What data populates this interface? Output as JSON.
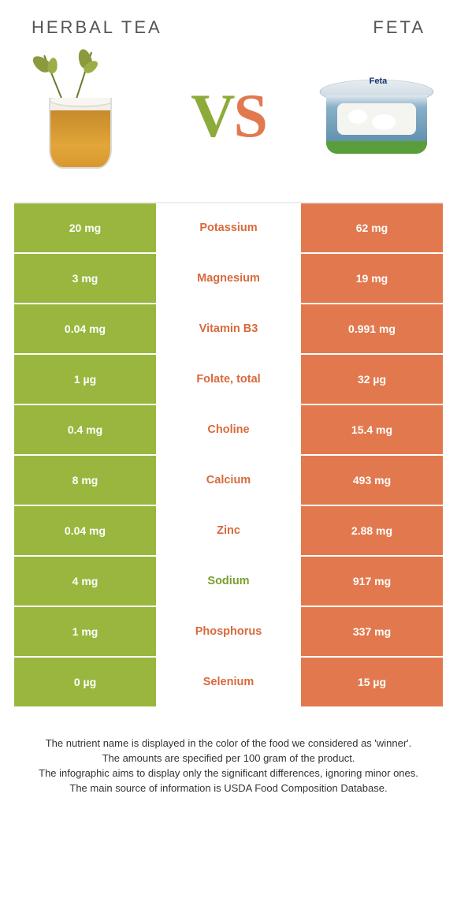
{
  "colors": {
    "green": "#99b73e",
    "orange": "#e2794e",
    "nutrient_orange_text": "#d86a3c",
    "nutrient_green_text": "#7a9e2e"
  },
  "header": {
    "left": "HERBAL TEA",
    "right": "FETA"
  },
  "vs": {
    "v": "V",
    "s": "S"
  },
  "feta_label": "Feta",
  "rows": [
    {
      "left": "20 mg",
      "mid": "Potassium",
      "right": "62 mg",
      "winner": "right"
    },
    {
      "left": "3 mg",
      "mid": "Magnesium",
      "right": "19 mg",
      "winner": "right"
    },
    {
      "left": "0.04 mg",
      "mid": "Vitamin B3",
      "right": "0.991 mg",
      "winner": "right"
    },
    {
      "left": "1 µg",
      "mid": "Folate, total",
      "right": "32 µg",
      "winner": "right"
    },
    {
      "left": "0.4 mg",
      "mid": "Choline",
      "right": "15.4 mg",
      "winner": "right"
    },
    {
      "left": "8 mg",
      "mid": "Calcium",
      "right": "493 mg",
      "winner": "right"
    },
    {
      "left": "0.04 mg",
      "mid": "Zinc",
      "right": "2.88 mg",
      "winner": "right"
    },
    {
      "left": "4 mg",
      "mid": "Sodium",
      "right": "917 mg",
      "winner": "left"
    },
    {
      "left": "1 mg",
      "mid": "Phosphorus",
      "right": "337 mg",
      "winner": "right"
    },
    {
      "left": "0 µg",
      "mid": "Selenium",
      "right": "15 µg",
      "winner": "right"
    }
  ],
  "notes": [
    "The nutrient name is displayed in the color of the food we considered as 'winner'.",
    "The amounts are specified per 100 gram of the product.",
    "The infographic aims to display only the significant differences, ignoring minor ones.",
    "The main source of information is USDA Food Composition Database."
  ]
}
